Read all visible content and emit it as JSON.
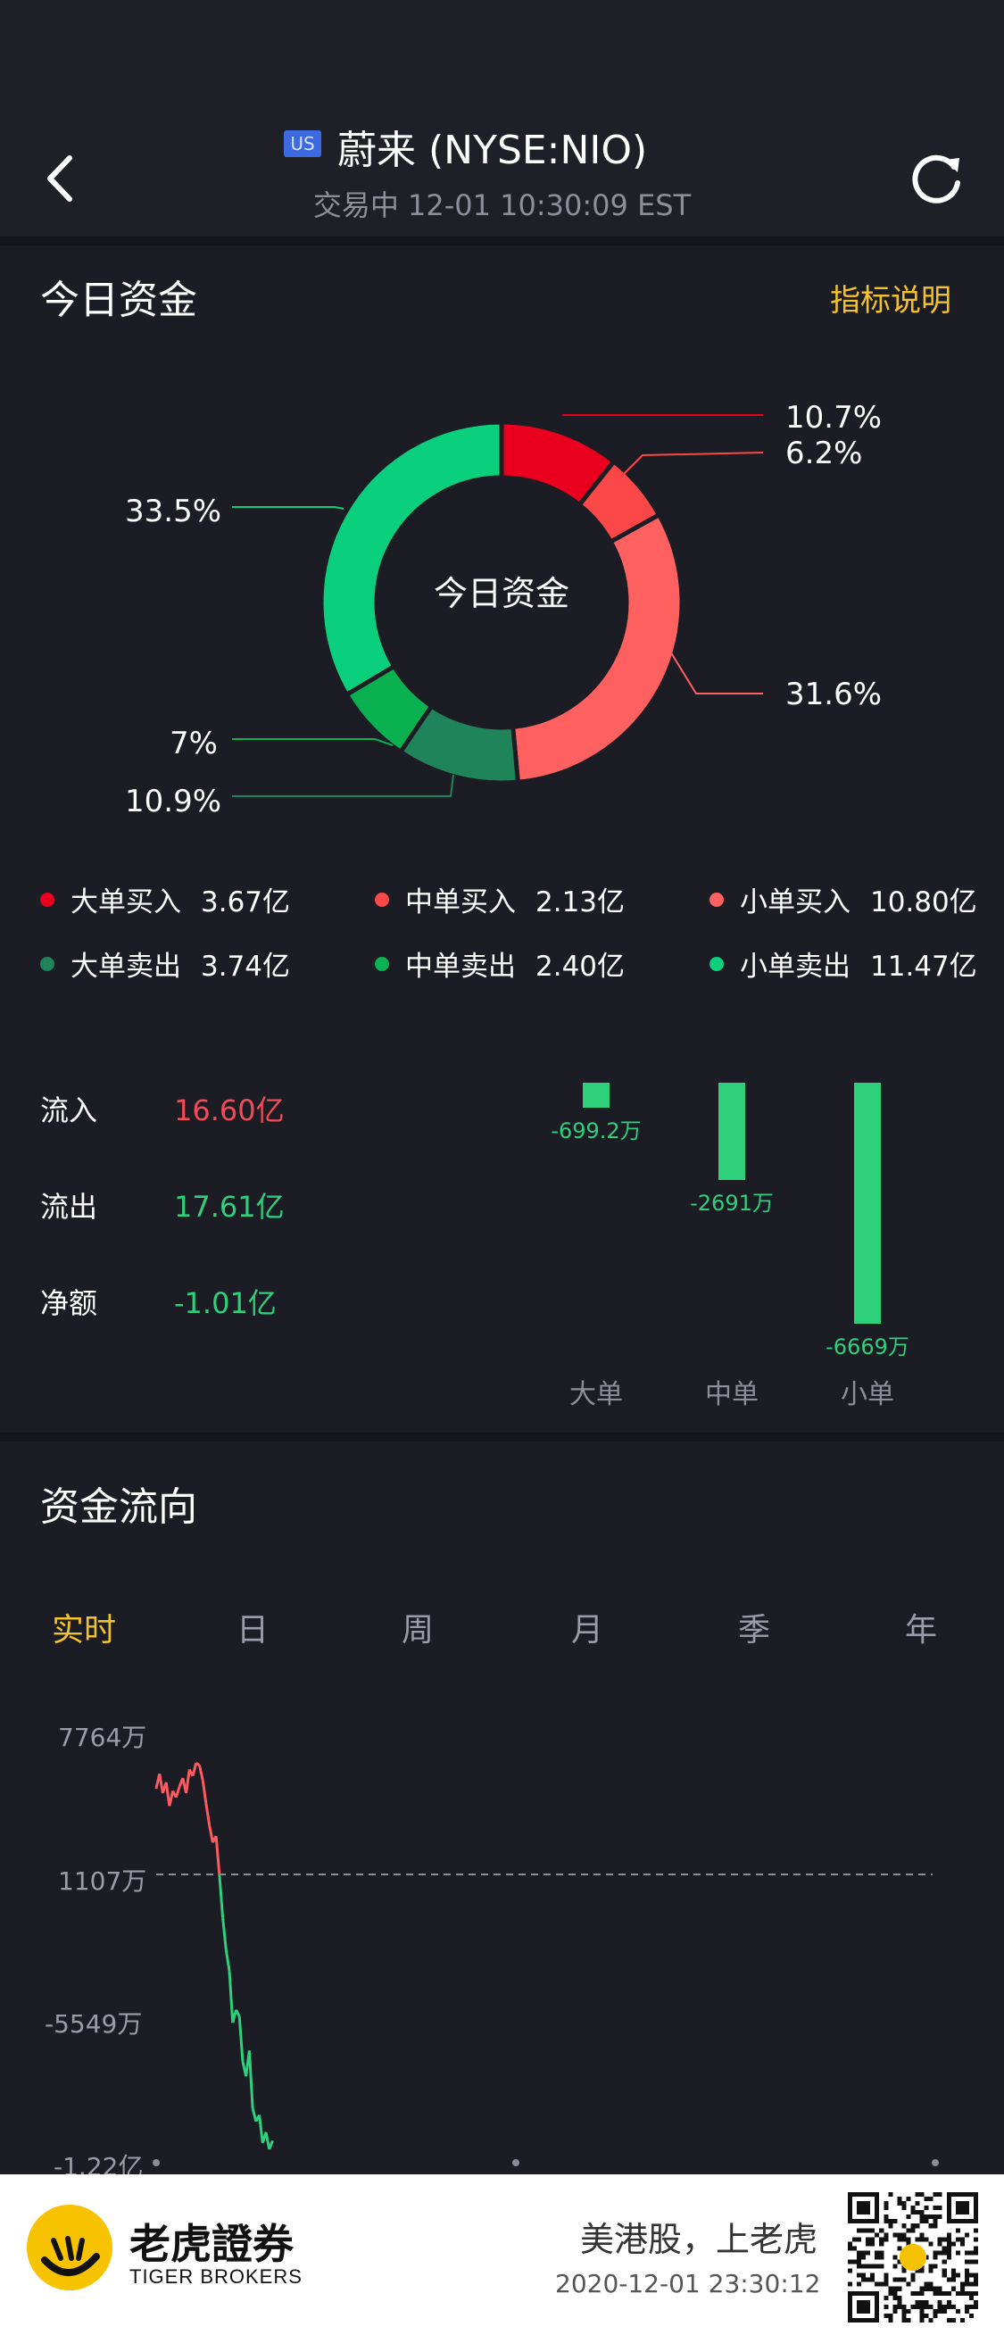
{
  "header": {
    "market_badge": "US",
    "title": "蔚来 (NYSE:NIO)",
    "status": "交易中 12-01 10:30:09 EST"
  },
  "today_funds": {
    "title": "今日资金",
    "indicator_link": "指标说明",
    "donut_center": "今日资金",
    "slices": [
      {
        "label": "10.7%",
        "value": 10.7,
        "color": "#e8001e"
      },
      {
        "label": "6.2%",
        "value": 6.2,
        "color": "#fb4747"
      },
      {
        "label": "31.6%",
        "value": 31.6,
        "color": "#ff6161"
      },
      {
        "label": "10.9%",
        "value": 10.9,
        "color": "#20845a"
      },
      {
        "label": "7%",
        "value": 7.0,
        "color": "#09b151"
      },
      {
        "label": "33.5%",
        "value": 33.5,
        "color": "#0ad07e"
      }
    ],
    "legend": [
      {
        "name": "大单买入",
        "value": "3.67亿",
        "color": "#e8001e"
      },
      {
        "name": "中单买入",
        "value": "2.13亿",
        "color": "#fb4747"
      },
      {
        "name": "小单买入",
        "value": "10.80亿",
        "color": "#ff6161"
      },
      {
        "name": "大单卖出",
        "value": "3.74亿",
        "color": "#20845a"
      },
      {
        "name": "中单卖出",
        "value": "2.40亿",
        "color": "#09b151"
      },
      {
        "name": "小单卖出",
        "value": "11.47亿",
        "color": "#0ad07e"
      }
    ],
    "flows": {
      "inflow_label": "流入",
      "inflow_value": "16.60亿",
      "inflow_color": "#f24a56",
      "outflow_label": "流出",
      "outflow_value": "17.61亿",
      "outflow_color": "#2ed07c",
      "net_label": "净额",
      "net_value": "-1.01亿",
      "net_color": "#2ed07c"
    },
    "net_bars": [
      {
        "category": "大单",
        "value": -699.2,
        "label": "-699.2万"
      },
      {
        "category": "中单",
        "value": -2691,
        "label": "-2691万"
      },
      {
        "category": "小单",
        "value": -6669,
        "label": "-6669万"
      }
    ]
  },
  "fund_flow": {
    "title": "资金流向",
    "tabs": [
      "实时",
      "日",
      "周",
      "月",
      "季",
      "年"
    ],
    "active_tab": 0
  },
  "chart_data": {
    "type": "line",
    "y_ticks": [
      "7764万",
      "1107万",
      "-5549万",
      "-1.22亿"
    ],
    "ylim": [
      -12200,
      7764
    ],
    "baseline": 1107,
    "x_fraction_covered": 0.15,
    "series": [
      {
        "values": [
          5100,
          5800,
          4900,
          5400,
          4300,
          5000,
          4700,
          5200,
          5600,
          4900,
          6000,
          5700,
          6300,
          6200,
          5500,
          4400,
          3400,
          2600,
          2900,
          1100,
          -900,
          -2400,
          -3400,
          -5800,
          -5200,
          -5500,
          -7600,
          -8300,
          -7100,
          -9800,
          -10400,
          -10100,
          -11400,
          -10900,
          -11700,
          -11300
        ]
      }
    ],
    "colors": {
      "positive": "#ff5a5f",
      "negative": "#2ed07c",
      "baseline": "#8a8c99"
    }
  },
  "footer": {
    "brand_cn": "老虎證券",
    "brand_en": "TIGER BROKERS",
    "slogan": "美港股，上老虎",
    "timestamp": "2020-12-01 23:30:12"
  }
}
